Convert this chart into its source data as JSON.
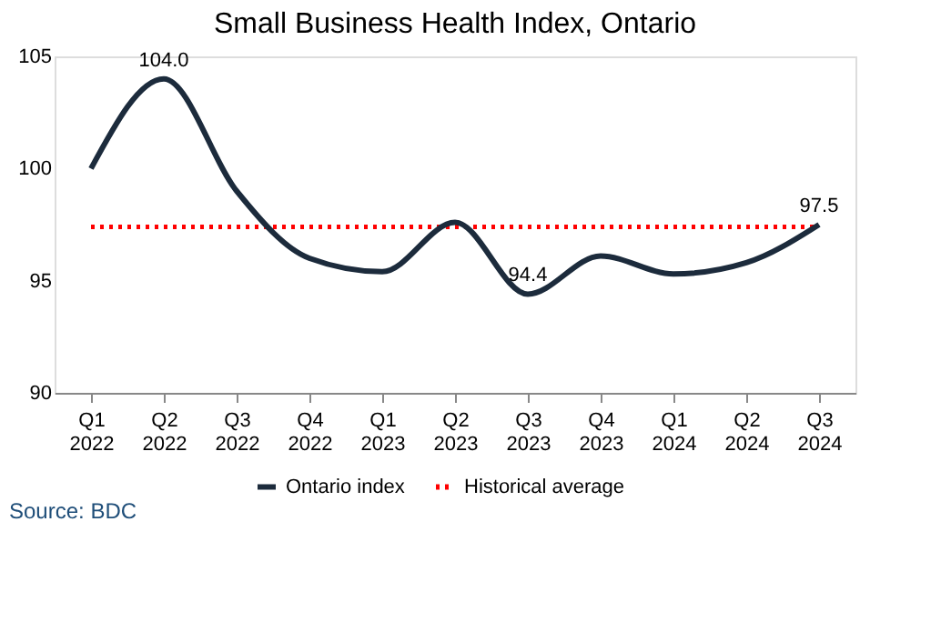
{
  "chart_data": {
    "type": "line",
    "title": "Small Business Health Index, Ontario",
    "categories": [
      "Q1 2022",
      "Q2 2022",
      "Q3 2022",
      "Q4 2022",
      "Q1 2023",
      "Q2 2023",
      "Q3 2023",
      "Q4 2023",
      "Q1 2024",
      "Q2 2024",
      "Q3 2024"
    ],
    "series": [
      {
        "name": "Ontario index",
        "color": "#1c2b3c",
        "values": [
          100.0,
          104.0,
          99.0,
          96.0,
          95.4,
          97.6,
          94.4,
          96.1,
          95.3,
          95.8,
          97.5
        ],
        "value_labels": [
          null,
          "104.0",
          null,
          null,
          null,
          null,
          "94.4",
          null,
          null,
          null,
          "97.5"
        ]
      }
    ],
    "ref_lines": [
      {
        "axis": "y",
        "value": 97.4,
        "label": "Historical average",
        "color": "#ff0000",
        "line_style": "dotted"
      }
    ],
    "ylim": [
      90,
      105
    ],
    "yticks": [
      90,
      95,
      100,
      105
    ],
    "grid": false,
    "legend": "bottom",
    "marker": "none",
    "line_style": "solid",
    "annotations": [
      "Source: BDC"
    ]
  }
}
